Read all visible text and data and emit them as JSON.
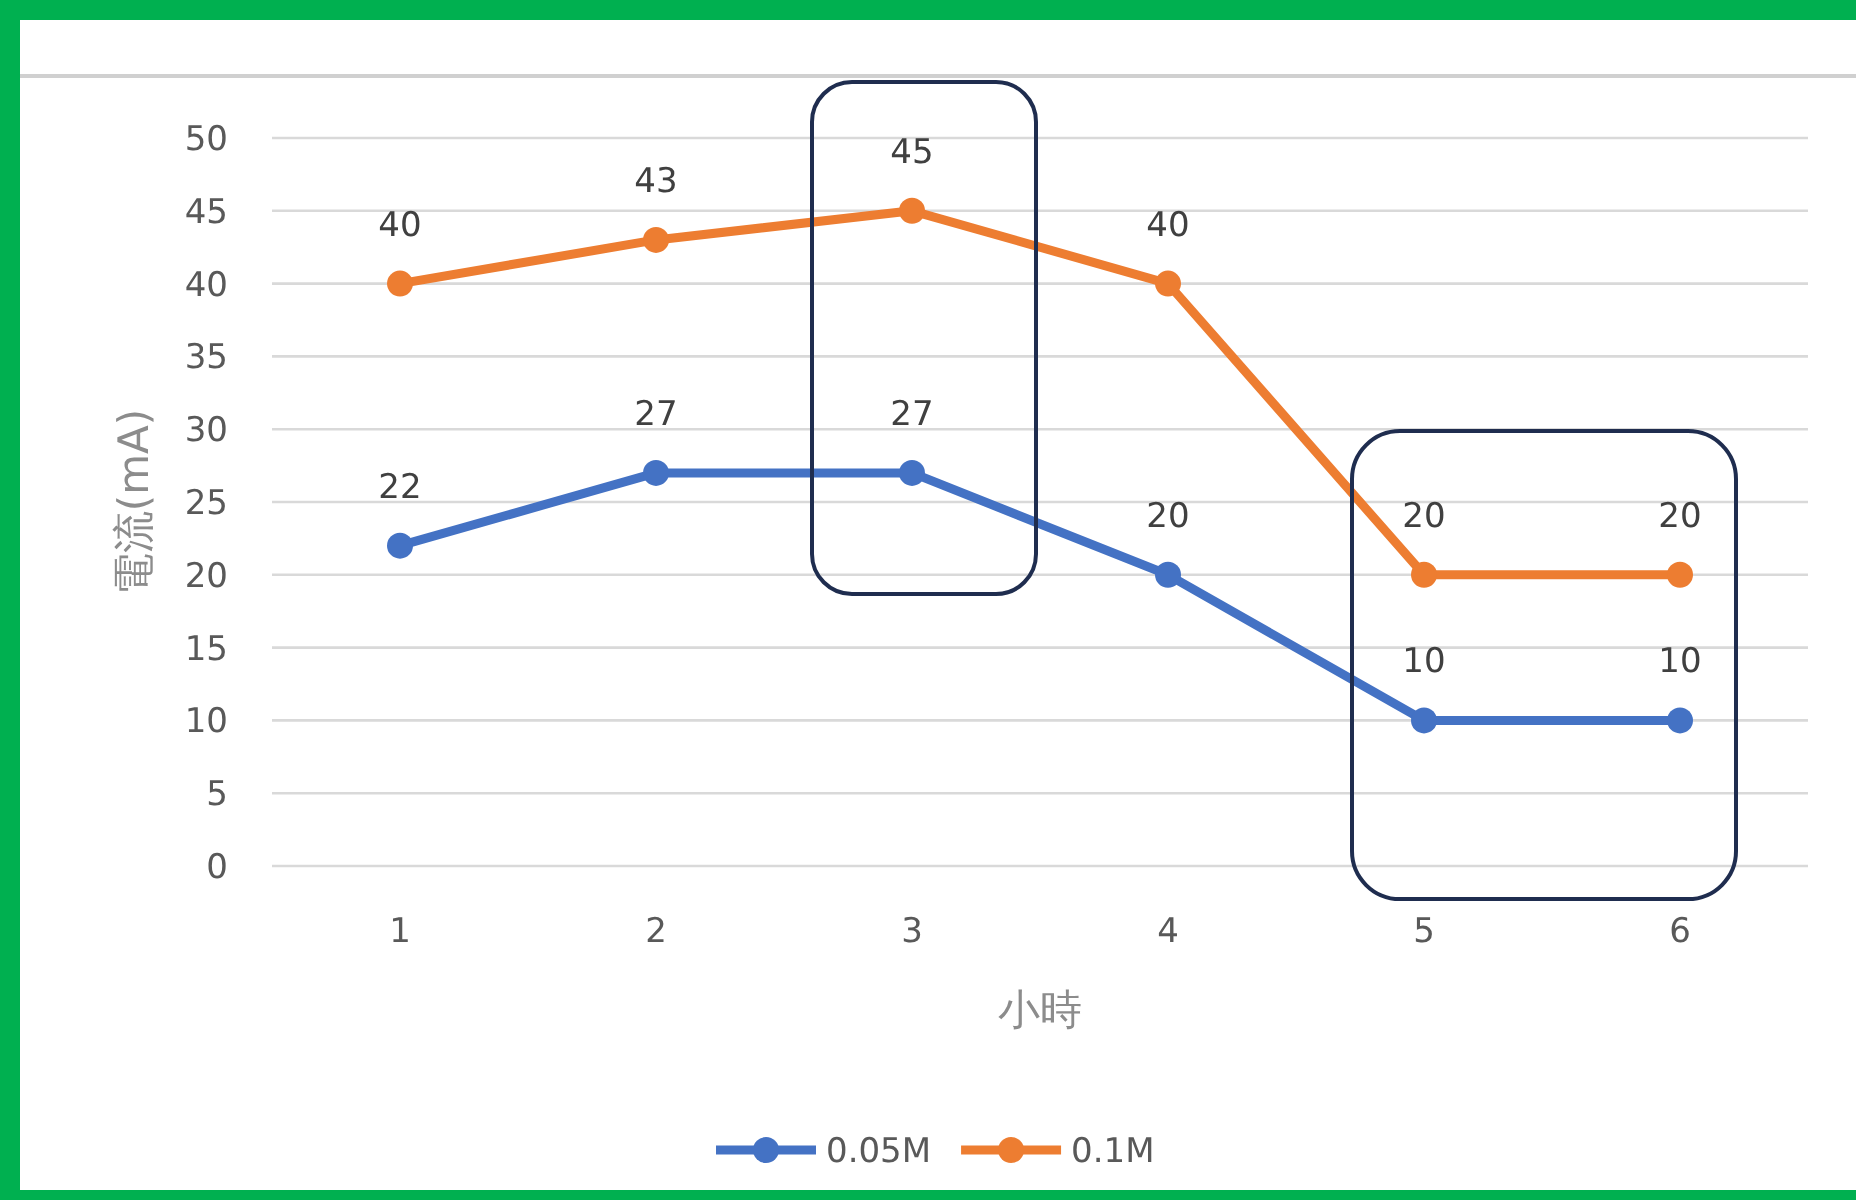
{
  "chart_data": {
    "type": "line",
    "xlabel": "小時",
    "ylabel": "電流(mA)",
    "categories": [
      "1",
      "2",
      "3",
      "4",
      "5",
      "6"
    ],
    "series": [
      {
        "name": "0.05M",
        "color": "#4472c4",
        "values": [
          22,
          27,
          27,
          20,
          10,
          10
        ]
      },
      {
        "name": "0.1M",
        "color": "#ed7d31",
        "values": [
          40,
          43,
          45,
          40,
          20,
          20
        ]
      }
    ],
    "ylim": [
      0,
      50
    ],
    "yticks": [
      0,
      5,
      10,
      15,
      20,
      25,
      30,
      35,
      40,
      45,
      50
    ],
    "grid": "y",
    "legend": "bottom",
    "marker": "circle",
    "line_style": "solid",
    "data_labels": true
  }
}
